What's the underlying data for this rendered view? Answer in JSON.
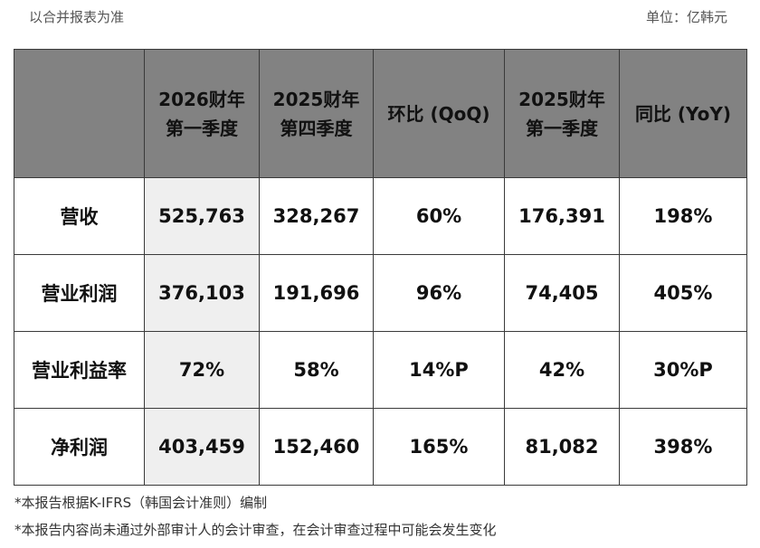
{
  "notes": {
    "basis": "以合并报表为准",
    "unit": "单位：亿韩元"
  },
  "table": {
    "headers": [
      {
        "line1": "",
        "line2": ""
      },
      {
        "line1": "2026财年",
        "line2": "第一季度"
      },
      {
        "line1": "2025财年",
        "line2": "第四季度"
      },
      {
        "line1": "环比 (QoQ)",
        "line2": ""
      },
      {
        "line1": "2025财年",
        "line2": "第一季度"
      },
      {
        "line1": "同比 (YoY)",
        "line2": ""
      }
    ],
    "rows": [
      {
        "label": "营收",
        "cells": [
          "525,763",
          "328,267",
          "60%",
          "176,391",
          "198%"
        ]
      },
      {
        "label": "营业利润",
        "cells": [
          "376,103",
          "191,696",
          "96%",
          "74,405",
          "405%"
        ]
      },
      {
        "label": "营业利益率",
        "cells": [
          "72%",
          "58%",
          "14%P",
          "42%",
          "30%P"
        ]
      },
      {
        "label": "净利润",
        "cells": [
          "403,459",
          "152,460",
          "165%",
          "81,082",
          "398%"
        ]
      }
    ]
  },
  "footnotes": [
    "*本报告根据K-IFRS（韩国会计准则）编制",
    "*本报告内容尚未通过外部审计人的会计审查，在会计审查过程中可能会发生变化"
  ]
}
